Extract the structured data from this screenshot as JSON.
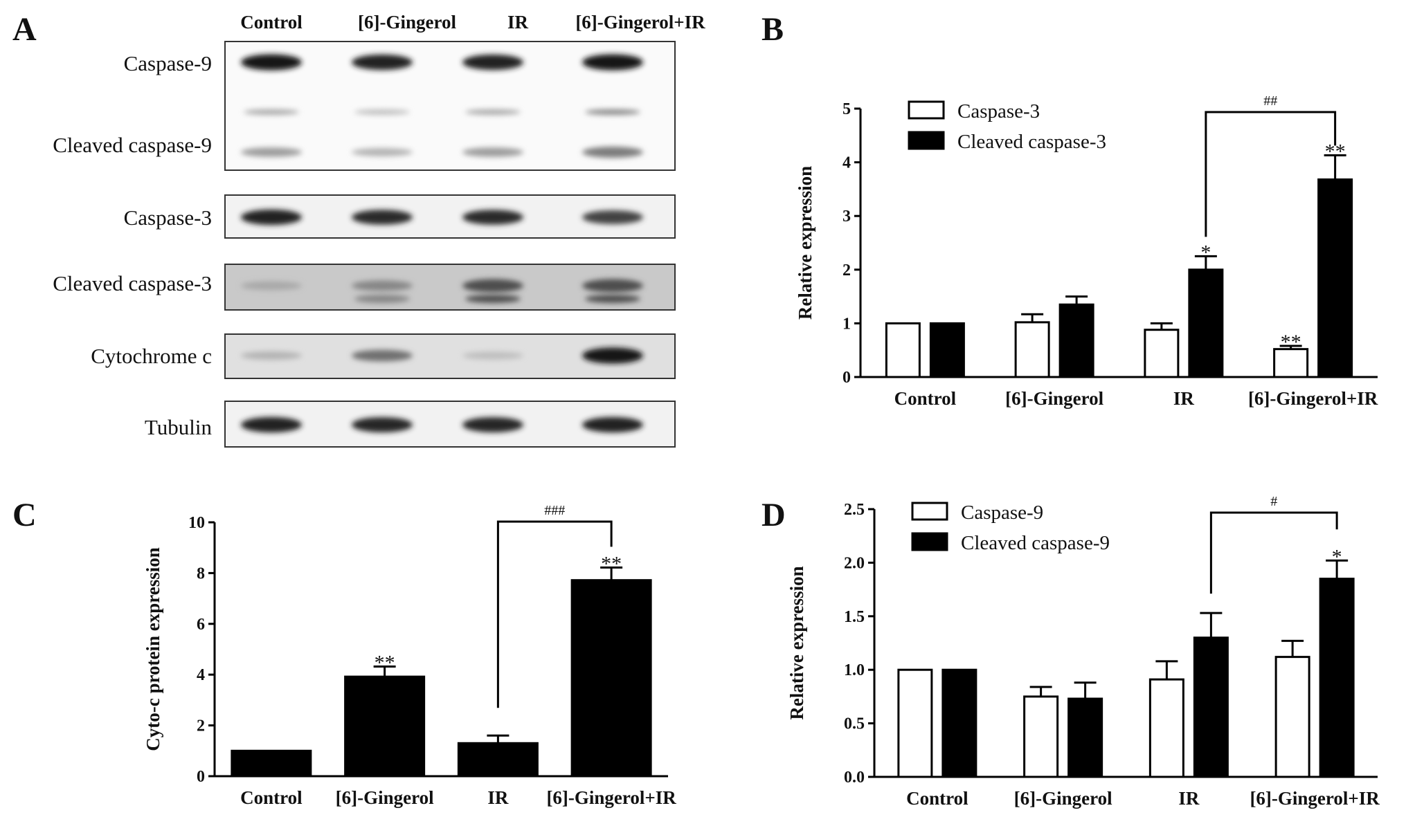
{
  "figure": {
    "panel_letters": [
      "A",
      "B",
      "C",
      "D"
    ],
    "blot": {
      "lanes": [
        "Control",
        "[6]-Gingerol",
        "IR",
        "[6]-Gingerol+IR"
      ],
      "rows": [
        {
          "label": "Caspase-9",
          "intensity": [
            0.95,
            0.9,
            0.9,
            0.95
          ]
        },
        {
          "label": "Cleaved caspase-9",
          "intensity": [
            0.35,
            0.25,
            0.35,
            0.5
          ]
        },
        {
          "label": "Caspase-3",
          "intensity": [
            0.9,
            0.85,
            0.85,
            0.75
          ]
        },
        {
          "label": "Cleaved caspase-3",
          "intensity": [
            0.3,
            0.45,
            0.7,
            0.7
          ]
        },
        {
          "label": "Cytochrome c",
          "intensity": [
            0.25,
            0.55,
            0.2,
            0.95
          ]
        },
        {
          "label": "Tubulin",
          "intensity": [
            0.9,
            0.88,
            0.88,
            0.9
          ]
        }
      ]
    }
  },
  "chart_data": [
    {
      "panel": "B",
      "type": "bar",
      "categories": [
        "Control",
        "[6]-Gingerol",
        "IR",
        "[6]-Gingerol+IR"
      ],
      "series": [
        {
          "name": "Caspase-3",
          "values": [
            1.0,
            1.02,
            0.88,
            0.52
          ],
          "errors": [
            0,
            0.15,
            0.12,
            0.06
          ],
          "fill": "#ffffff"
        },
        {
          "name": "Cleaved caspase-3",
          "values": [
            1.0,
            1.35,
            2.0,
            3.68
          ],
          "errors": [
            0,
            0.15,
            0.25,
            0.45
          ],
          "fill": "#000000"
        }
      ],
      "ylabel": "Relative expression",
      "ylim": [
        0,
        5
      ],
      "yticks": [
        "0",
        "1",
        "2",
        "3",
        "4",
        "5"
      ],
      "annotations": [
        {
          "text": "*",
          "series": 1,
          "category": 2
        },
        {
          "text": "**",
          "series": 1,
          "category": 3
        },
        {
          "text": "**",
          "series": 0,
          "category": 3
        }
      ],
      "bracket": {
        "text": "##",
        "from": {
          "series": 1,
          "category": 2
        },
        "to": {
          "series": 1,
          "category": 3
        }
      },
      "legend": "top-left"
    },
    {
      "panel": "C",
      "type": "bar",
      "categories": [
        "Control",
        "[6]-Gingerol",
        "IR",
        "[6]-Gingerol+IR"
      ],
      "series": [
        {
          "name": "",
          "values": [
            1.0,
            3.92,
            1.3,
            7.72
          ],
          "errors": [
            0,
            0.4,
            0.3,
            0.5
          ],
          "fill": "#000000"
        }
      ],
      "ylabel": "Cyto-c protein expression",
      "ylim": [
        0,
        10
      ],
      "yticks": [
        "0",
        "2",
        "4",
        "6",
        "8",
        "10"
      ],
      "annotations": [
        {
          "text": "**",
          "series": 0,
          "category": 1
        },
        {
          "text": "**",
          "series": 0,
          "category": 3
        }
      ],
      "bracket": {
        "text": "###",
        "from": {
          "series": 0,
          "category": 2
        },
        "to": {
          "series": 0,
          "category": 3
        }
      },
      "legend": "none"
    },
    {
      "panel": "D",
      "type": "bar",
      "categories": [
        "Control",
        "[6]-Gingerol",
        "IR",
        "[6]-Gingerol+IR"
      ],
      "series": [
        {
          "name": "Caspase-9",
          "values": [
            1.0,
            0.75,
            0.91,
            1.12
          ],
          "errors": [
            0,
            0.09,
            0.17,
            0.15
          ],
          "fill": "#ffffff"
        },
        {
          "name": "Cleaved caspase-9",
          "values": [
            1.0,
            0.73,
            1.3,
            1.85
          ],
          "errors": [
            0,
            0.15,
            0.23,
            0.17
          ],
          "fill": "#000000"
        }
      ],
      "ylabel": "Relative expression",
      "ylim": [
        0,
        2.5
      ],
      "yticks": [
        "0.0",
        "0.5",
        "1.0",
        "1.5",
        "2.0",
        "2.5"
      ],
      "annotations": [
        {
          "text": "*",
          "series": 1,
          "category": 3
        }
      ],
      "bracket": {
        "text": "#",
        "from": {
          "series": 1,
          "category": 2
        },
        "to": {
          "series": 1,
          "category": 3
        }
      },
      "legend": "top-left"
    }
  ]
}
